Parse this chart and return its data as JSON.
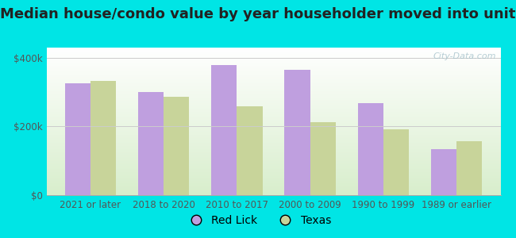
{
  "title": "Median house/condo value by year householder moved into unit",
  "categories": [
    "2021 or later",
    "2018 to 2020",
    "2010 to 2017",
    "2000 to 2009",
    "1990 to 1999",
    "1989 or earlier"
  ],
  "red_lick": [
    325000,
    300000,
    378000,
    365000,
    268000,
    133000
  ],
  "texas": [
    333000,
    287000,
    258000,
    213000,
    193000,
    158000
  ],
  "bar_color_red_lick": "#bf9fdf",
  "bar_color_texas": "#c8d49a",
  "background_outer": "#00e5e5",
  "background_inner_top": "#ffffff",
  "background_inner_bottom": "#d8eecc",
  "ytick_labels": [
    "$0",
    "$200k",
    "$400k"
  ],
  "ytick_values": [
    0,
    200000,
    400000
  ],
  "ylim": [
    0,
    430000
  ],
  "legend_labels": [
    "Red Lick",
    "Texas"
  ],
  "watermark": "City-Data.com",
  "bar_width": 0.35,
  "title_fontsize": 13,
  "tick_fontsize": 8.5,
  "legend_fontsize": 10
}
